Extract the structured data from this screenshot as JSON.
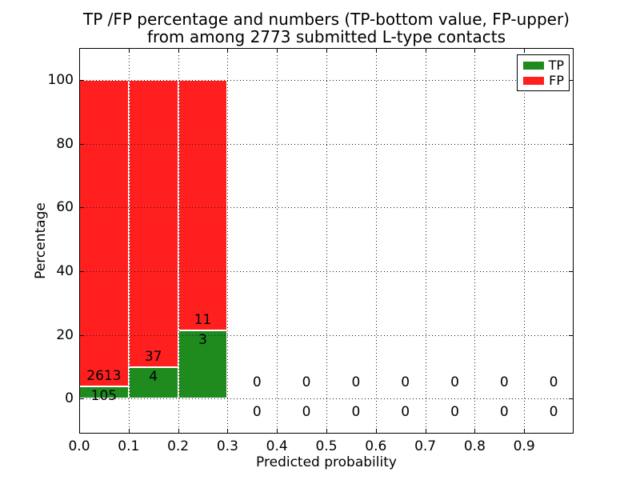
{
  "figure": {
    "title_line1": "TP /FP percentage and numbers (TP-bottom value, FP-upper)",
    "title_line2": "from among 2773 submitted L-type contacts",
    "xlabel": "Predicted probability",
    "ylabel": "Percentage",
    "background": "#ffffff",
    "text_color": "#000000",
    "grid_color": "#1a1a1a"
  },
  "legend": {
    "position": "upper right",
    "entries": [
      {
        "label": "TP",
        "color": "#1f8b1f"
      },
      {
        "label": "FP",
        "color": "#ff1f1f"
      }
    ]
  },
  "chart_data": {
    "type": "bar",
    "stacked": true,
    "unit": "percent of bin total",
    "title": "TP /FP percentage and numbers (TP-bottom value, FP-upper) from among 2773 submitted L-type contacts",
    "xlabel": "Predicted probability",
    "ylabel": "Percentage",
    "total_submitted": 2773,
    "xlim": [
      0.0,
      1.0
    ],
    "ylim": [
      -11,
      110
    ],
    "bin_edges": [
      0.0,
      0.1,
      0.2,
      0.3,
      0.4,
      0.5,
      0.6,
      0.7,
      0.8,
      0.9,
      1.0
    ],
    "categories": [
      "0.0-0.1",
      "0.1-0.2",
      "0.2-0.3",
      "0.3-0.4",
      "0.4-0.5",
      "0.5-0.6",
      "0.6-0.7",
      "0.7-0.8",
      "0.8-0.9",
      "0.9-1.0"
    ],
    "series": [
      {
        "name": "TP",
        "color": "#1f8b1f",
        "counts": [
          105,
          4,
          3,
          0,
          0,
          0,
          0,
          0,
          0,
          0
        ]
      },
      {
        "name": "FP",
        "color": "#ff1f1f",
        "counts": [
          2613,
          37,
          11,
          0,
          0,
          0,
          0,
          0,
          0,
          0
        ]
      }
    ],
    "tp_pct": [
      3.86,
      9.76,
      21.43,
      null,
      null,
      null,
      null,
      null,
      null,
      null
    ],
    "fp_pct": [
      96.14,
      90.24,
      78.57,
      null,
      null,
      null,
      null,
      null,
      null,
      null
    ],
    "xticks": [
      0.0,
      0.1,
      0.2,
      0.3,
      0.4,
      0.5,
      0.6,
      0.7,
      0.8,
      0.9
    ],
    "xtick_labels": [
      "0.0",
      "0.1",
      "0.2",
      "0.3",
      "0.4",
      "0.5",
      "0.6",
      "0.7",
      "0.8",
      "0.9"
    ],
    "yticks": [
      0,
      20,
      40,
      60,
      80,
      100
    ],
    "ytick_labels": [
      "0",
      "20",
      "40",
      "60",
      "80",
      "100"
    ],
    "grid": {
      "on": true,
      "style": "dotted",
      "above_bars": true
    },
    "legend_position": "upper right"
  }
}
